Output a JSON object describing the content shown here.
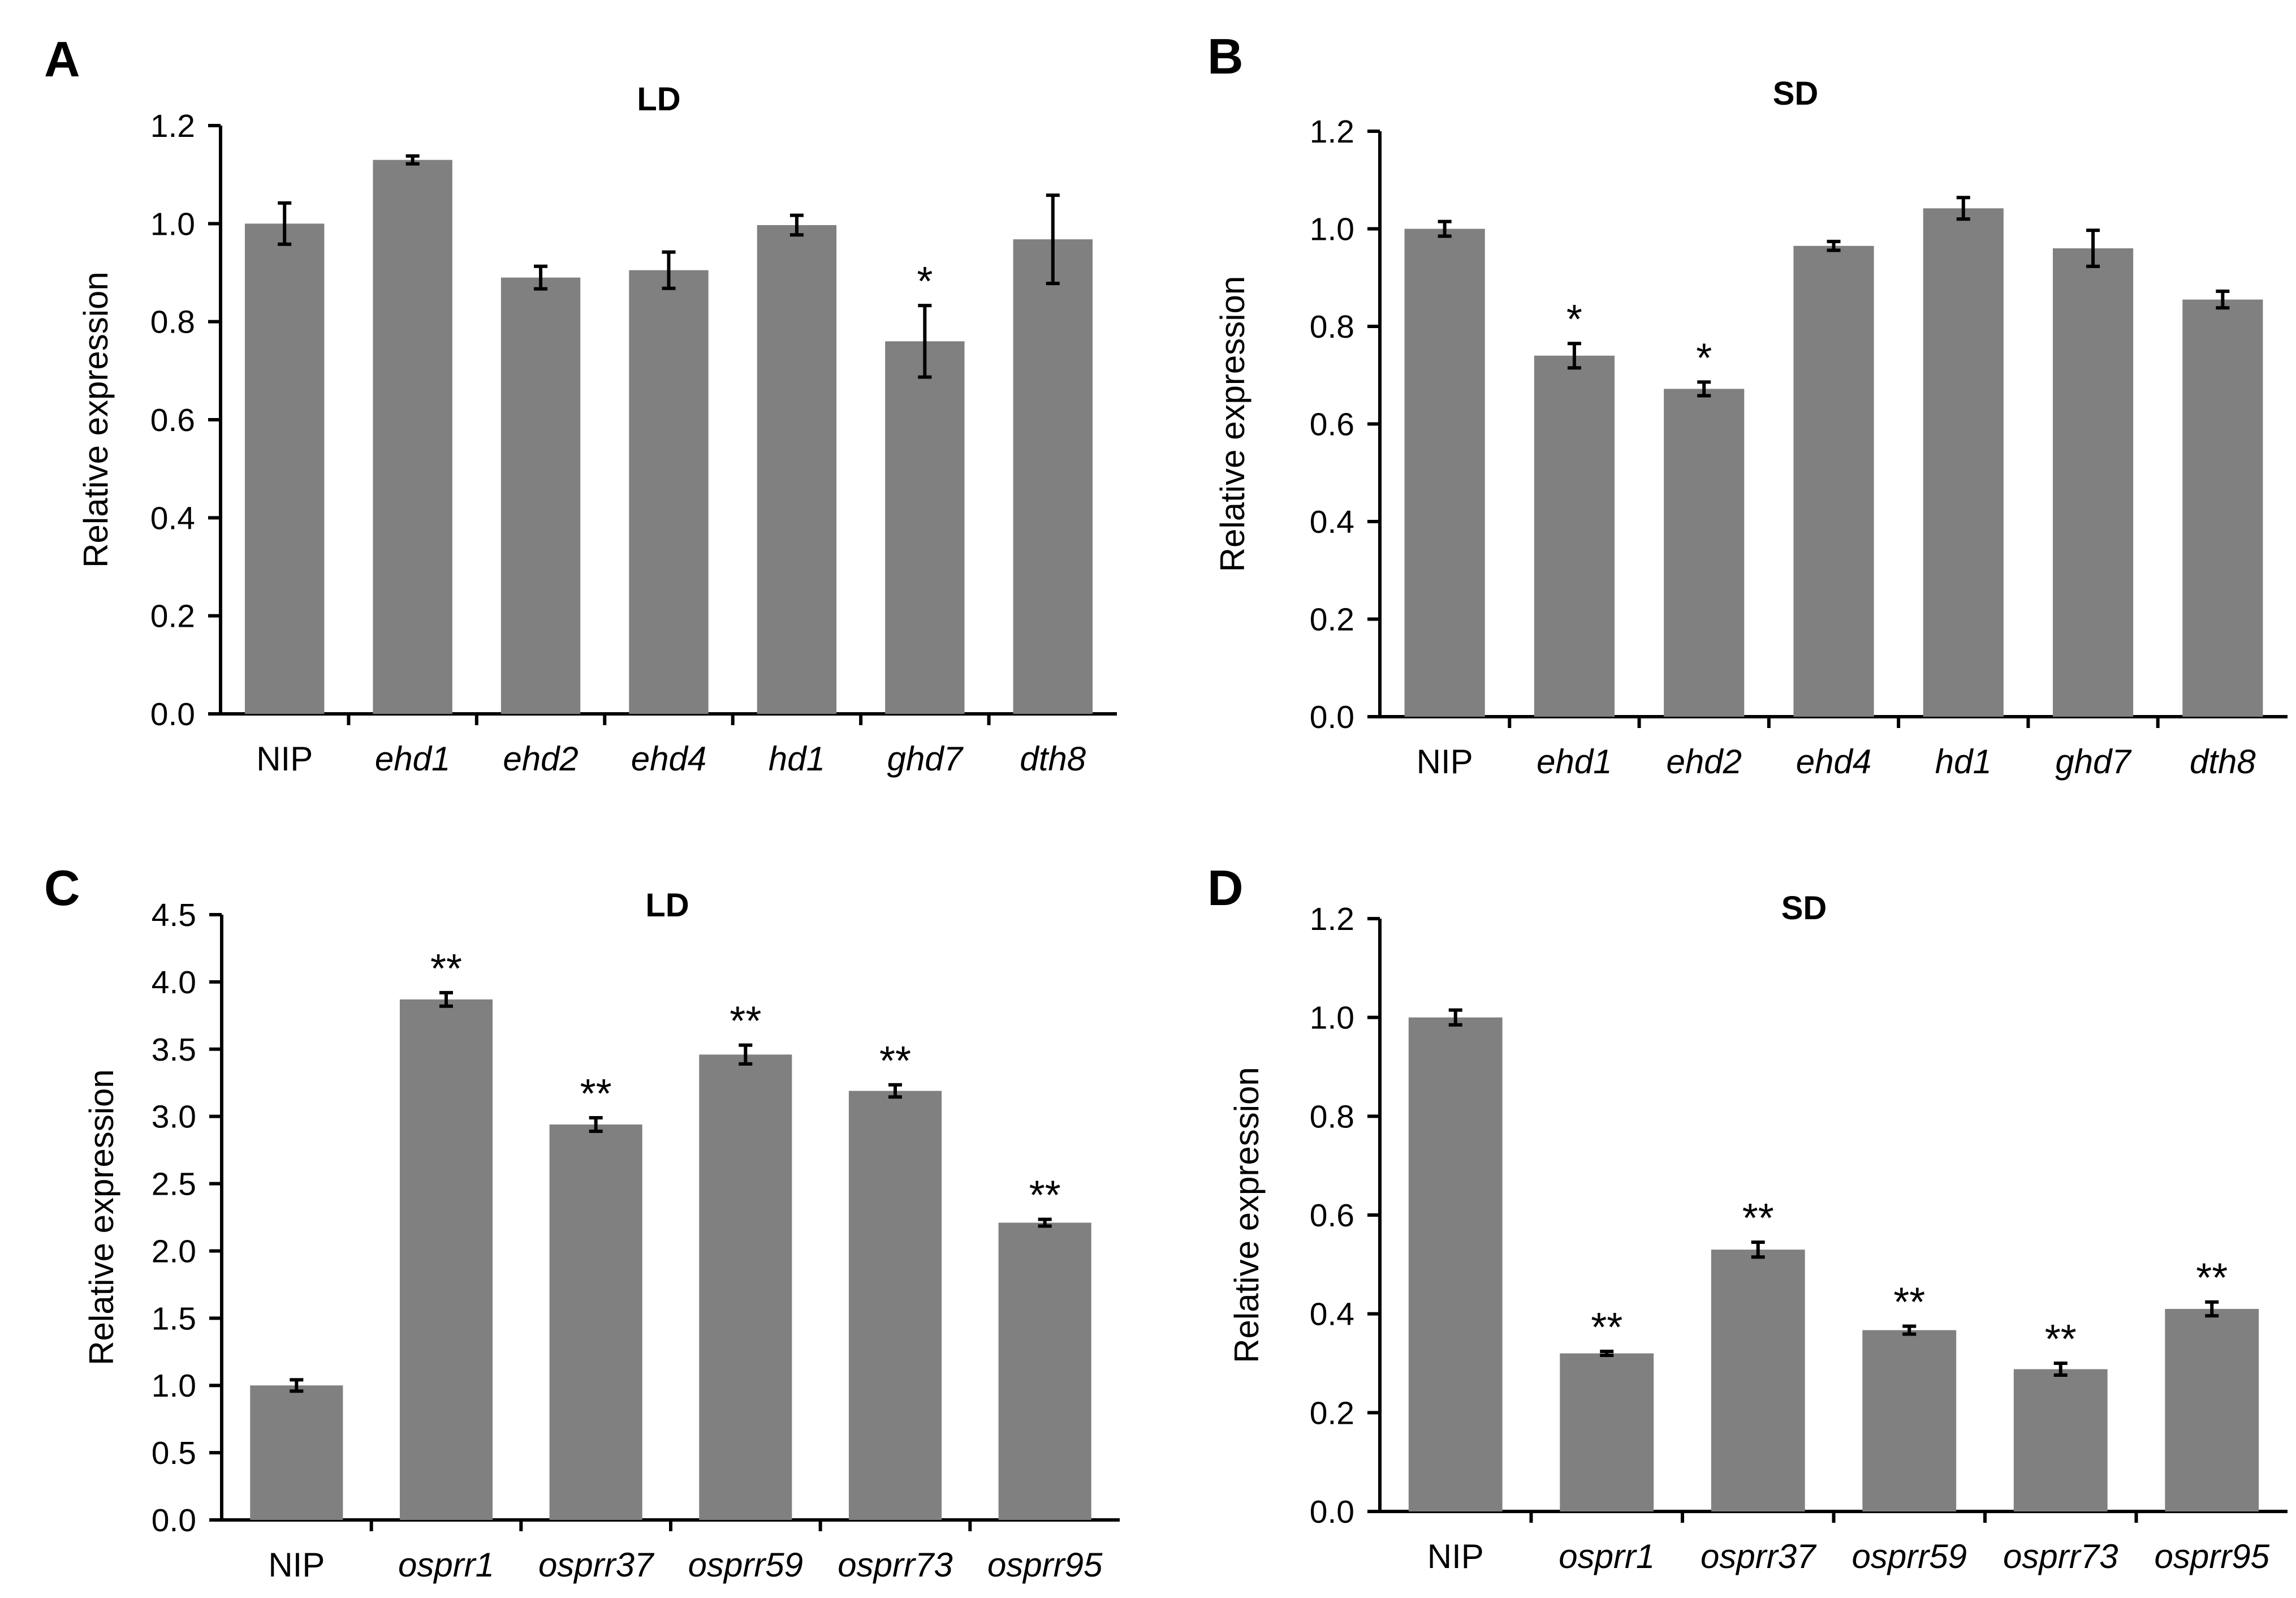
{
  "chart_data": [
    {
      "panel": "A",
      "type": "bar",
      "title": "LD",
      "ylabel": "Relative expression",
      "xlabel": "",
      "ylim": [
        0,
        1.2
      ],
      "ytick_step": 0.2,
      "ytick_decimals": 1,
      "categories": [
        "NIP",
        "ehd1",
        "ehd2",
        "ehd4",
        "hd1",
        "ghd7",
        "dth8"
      ],
      "italic": [
        false,
        true,
        true,
        true,
        true,
        true,
        true
      ],
      "values": [
        1.0,
        1.13,
        0.89,
        0.905,
        0.997,
        0.76,
        0.968
      ],
      "errors": [
        0.042,
        0.008,
        0.023,
        0.037,
        0.02,
        0.073,
        0.09
      ],
      "significance": [
        "",
        "",
        "",
        "",
        "",
        "*",
        ""
      ]
    },
    {
      "panel": "B",
      "type": "bar",
      "title": "SD",
      "ylabel": "Relative expression",
      "xlabel": "",
      "ylim": [
        0,
        1.2
      ],
      "ytick_step": 0.2,
      "ytick_decimals": 1,
      "categories": [
        "NIP",
        "ehd1",
        "ehd2",
        "ehd4",
        "hd1",
        "ghd7",
        "dth8"
      ],
      "italic": [
        false,
        true,
        true,
        true,
        true,
        true,
        true
      ],
      "values": [
        1.0,
        0.74,
        0.672,
        0.965,
        1.042,
        0.96,
        0.855
      ],
      "errors": [
        0.015,
        0.025,
        0.014,
        0.009,
        0.022,
        0.037,
        0.017
      ],
      "significance": [
        "",
        "*",
        "*",
        "",
        "",
        "",
        ""
      ]
    },
    {
      "panel": "C",
      "type": "bar",
      "title": "LD",
      "ylabel": "Relative expression",
      "xlabel": "",
      "ylim": [
        0,
        4.5
      ],
      "ytick_step": 0.5,
      "ytick_decimals": 1,
      "categories": [
        "NIP",
        "osprr1",
        "osprr37",
        "osprr59",
        "osprr73",
        "osprr95"
      ],
      "italic": [
        false,
        true,
        true,
        true,
        true,
        true
      ],
      "values": [
        1.0,
        3.87,
        2.94,
        3.46,
        3.19,
        2.21
      ],
      "errors": [
        0.042,
        0.05,
        0.05,
        0.07,
        0.045,
        0.025
      ],
      "significance": [
        "",
        "**",
        "**",
        "**",
        "**",
        "**"
      ]
    },
    {
      "panel": "D",
      "type": "bar",
      "title": "SD",
      "ylabel": "Relative expression",
      "xlabel": "",
      "ylim": [
        0,
        1.2
      ],
      "ytick_step": 0.2,
      "ytick_decimals": 1,
      "categories": [
        "NIP",
        "osprr1",
        "osprr37",
        "osprr59",
        "osprr73",
        "osprr95"
      ],
      "italic": [
        false,
        true,
        true,
        true,
        true,
        true
      ],
      "values": [
        1.0,
        0.32,
        0.53,
        0.367,
        0.288,
        0.41
      ],
      "errors": [
        0.015,
        0.004,
        0.015,
        0.008,
        0.012,
        0.014
      ],
      "significance": [
        "",
        "**",
        "**",
        "**",
        "**",
        "**"
      ]
    }
  ],
  "colors": {
    "bar": "#808080",
    "axis": "#000000"
  }
}
